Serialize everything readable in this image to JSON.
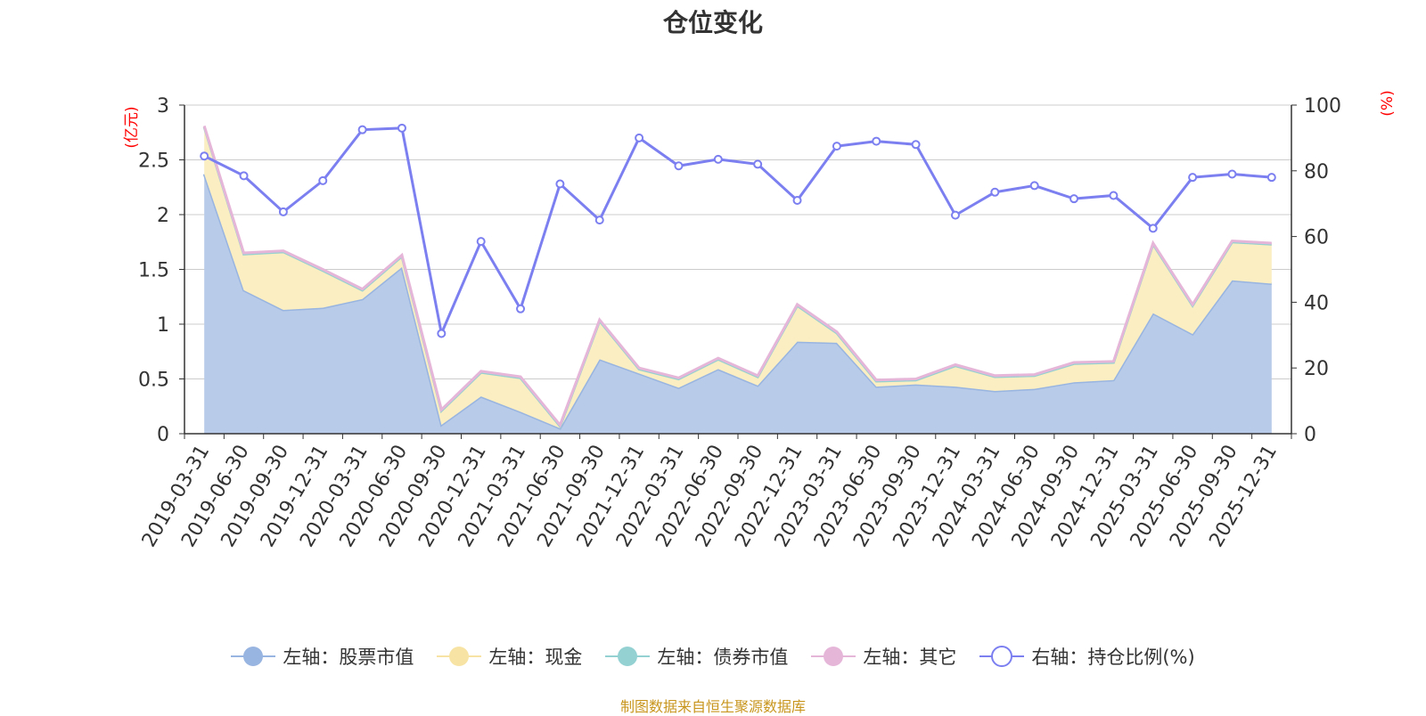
{
  "chart_data": {
    "type": "area",
    "title": "仓位变化",
    "ylabel_left": "(亿元)",
    "ylabel_right": "(%)",
    "ylim_left": [
      0,
      3
    ],
    "yticks_left": [
      "0",
      "0.5",
      "1",
      "1.5",
      "2",
      "2.5",
      "3"
    ],
    "ylim_right": [
      0,
      100
    ],
    "yticks_right": [
      "0",
      "20",
      "40",
      "60",
      "80",
      "100"
    ],
    "categories": [
      "2019-03-31",
      "2019-06-30",
      "2019-09-30",
      "2019-12-31",
      "2020-03-31",
      "2020-06-30",
      "2020-09-30",
      "2020-12-31",
      "2021-03-31",
      "2021-06-30",
      "2021-09-30",
      "2021-12-31",
      "2022-03-31",
      "2022-06-30",
      "2022-09-30",
      "2022-12-31",
      "2023-03-31",
      "2023-06-30",
      "2023-09-30",
      "2023-12-31",
      "2024-03-31",
      "2024-06-30",
      "2024-09-30",
      "2024-12-31",
      "2025-03-31",
      "2025-06-30",
      "2025-09-30",
      "2025-12-31"
    ],
    "series": [
      {
        "name": "左轴：股票市值",
        "axis": "left",
        "color": "#98b4e0",
        "fill": "#b8cbe8",
        "values": [
          2.37,
          1.31,
          1.13,
          1.15,
          1.23,
          1.52,
          0.08,
          0.34,
          0.2,
          0.05,
          0.68,
          0.55,
          0.42,
          0.59,
          0.44,
          0.84,
          0.83,
          0.43,
          0.45,
          0.43,
          0.39,
          0.41,
          0.47,
          0.49,
          1.1,
          0.91,
          1.4,
          1.37
        ]
      },
      {
        "name": "左轴：现金",
        "axis": "left",
        "color": "#f7e4a4",
        "fill": "#faeec2",
        "values": [
          0.43,
          0.33,
          0.53,
          0.34,
          0.08,
          0.1,
          0.13,
          0.22,
          0.31,
          0.02,
          0.35,
          0.04,
          0.08,
          0.09,
          0.08,
          0.33,
          0.09,
          0.05,
          0.04,
          0.19,
          0.13,
          0.12,
          0.17,
          0.16,
          0.63,
          0.26,
          0.35,
          0.36
        ]
      },
      {
        "name": "左轴：债券市值",
        "axis": "left",
        "color": "#93d1d3",
        "fill": "#b5e0e1",
        "values": [
          0,
          0,
          0,
          0,
          0,
          0,
          0,
          0,
          0,
          0,
          0,
          0,
          0,
          0,
          0,
          0,
          0,
          0,
          0,
          0,
          0,
          0,
          0,
          0,
          0,
          0,
          0,
          0
        ]
      },
      {
        "name": "左轴：其它",
        "axis": "left",
        "color": "#e6b6d9",
        "fill": "#efcde6",
        "values": [
          0.01,
          0.01,
          0.01,
          0.01,
          0.01,
          0.01,
          0.01,
          0.01,
          0.01,
          0.01,
          0.01,
          0.01,
          0.01,
          0.01,
          0.01,
          0.01,
          0.01,
          0.01,
          0.01,
          0.01,
          0.01,
          0.01,
          0.01,
          0.01,
          0.01,
          0.01,
          0.01,
          0.01
        ]
      },
      {
        "name": "右轴：持仓比例(%)",
        "axis": "right",
        "color": "#7b7ff0",
        "values": [
          84.5,
          78.5,
          67.5,
          77,
          92.5,
          93,
          30.5,
          58.5,
          38,
          76,
          65,
          90,
          81.5,
          83.5,
          82,
          71,
          87.5,
          89,
          88,
          66.5,
          73.5,
          75.5,
          71.5,
          72.5,
          62.5,
          78,
          79,
          78
        ]
      }
    ],
    "legend_position": "bottom",
    "grid": true
  },
  "source_note": "制图数据来自恒生聚源数据库",
  "colors": {
    "axis_label_red": "#ff0000",
    "grid": "#cccccc",
    "axis": "#333333",
    "source": "#c8961e"
  }
}
